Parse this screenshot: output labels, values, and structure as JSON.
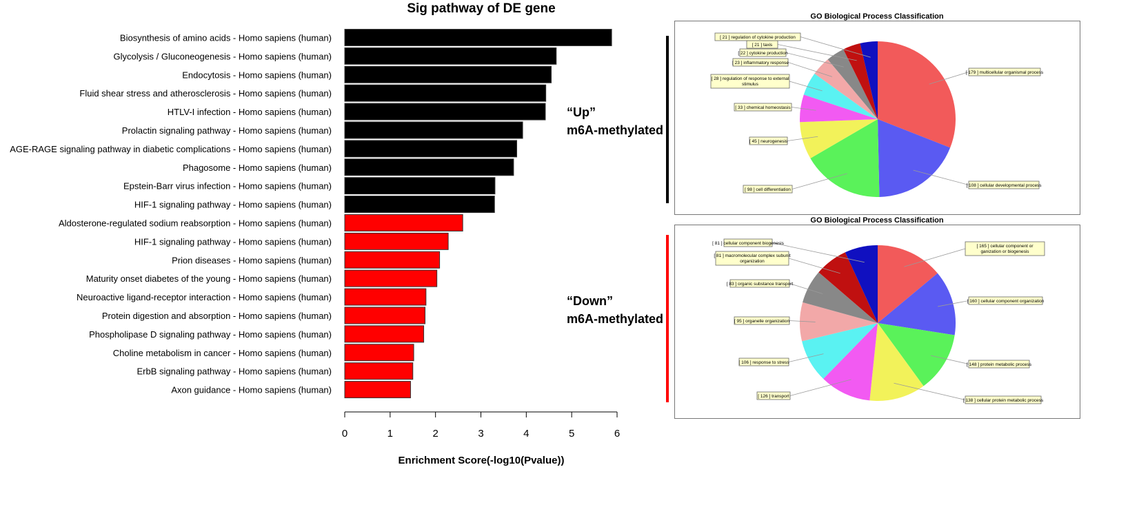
{
  "chart_data": [
    {
      "type": "bar",
      "orientation": "horizontal",
      "title": "Sig pathway of DE gene",
      "xlabel": "Enrichment Score(-log10(Pvalue))",
      "xlim": [
        0,
        6
      ],
      "xticks": [
        "0",
        "1",
        "2",
        "3",
        "4",
        "5",
        "6"
      ],
      "categories": [
        "Biosynthesis of amino acids - Homo sapiens (human)",
        "Glycolysis / Gluconeogenesis - Homo sapiens (human)",
        "Endocytosis - Homo sapiens (human)",
        "Fluid shear stress and atherosclerosis - Homo sapiens (human)",
        "HTLV-I infection - Homo sapiens (human)",
        "Prolactin signaling pathway - Homo sapiens (human)",
        "AGE-RAGE signaling pathway in diabetic complications - Homo sapiens (human)",
        "Phagosome - Homo sapiens (human)",
        "Epstein-Barr virus infection - Homo sapiens (human)",
        "HIF-1 signaling pathway - Homo sapiens (human)",
        "Aldosterone-regulated sodium reabsorption - Homo sapiens (human)",
        "HIF-1 signaling pathway - Homo sapiens (human)",
        "Prion diseases - Homo sapiens (human)",
        "Maturity onset diabetes of the young - Homo sapiens (human)",
        "Neuroactive ligand-receptor interaction - Homo sapiens (human)",
        "Protein digestion and absorption - Homo sapiens (human)",
        "Phospholipase D signaling pathway - Homo sapiens (human)",
        "Choline metabolism in cancer - Homo sapiens (human)",
        "ErbB signaling pathway - Homo sapiens (human)",
        "Axon guidance - Homo sapiens (human)"
      ],
      "values": [
        5.88,
        4.66,
        4.55,
        4.43,
        4.42,
        3.92,
        3.79,
        3.72,
        3.31,
        3.3,
        2.6,
        2.28,
        2.09,
        2.03,
        1.79,
        1.77,
        1.74,
        1.52,
        1.5,
        1.45
      ],
      "colors": [
        "#000000",
        "#000000",
        "#000000",
        "#000000",
        "#000000",
        "#000000",
        "#000000",
        "#000000",
        "#000000",
        "#000000",
        "#ff0000",
        "#ff0000",
        "#ff0000",
        "#ff0000",
        "#ff0000",
        "#ff0000",
        "#ff0000",
        "#ff0000",
        "#ff0000",
        "#ff0000"
      ]
    },
    {
      "type": "pie",
      "title": "GO Biological Process Classification",
      "group": "Up",
      "slices": [
        {
          "label": "[ 179 ] multicellular organismal process",
          "value": 179,
          "color": "#f25a5a"
        },
        {
          "label": "[ 108 ] cellular developmental process",
          "value": 108,
          "color": "#5a5af2"
        },
        {
          "label": "[ 98 ] cell differentiation",
          "value": 98,
          "color": "#5af25a"
        },
        {
          "label": "[ 45 ] neurogenesis",
          "value": 45,
          "color": "#f2f25a"
        },
        {
          "label": "[ 33 ] chemical homeostasis",
          "value": 33,
          "color": "#f25af2"
        },
        {
          "label": "[ 28 ] regulation of response to external stimulus",
          "value": 28,
          "color": "#5af2f2"
        },
        {
          "label": "[ 23 ] inflammatory response",
          "value": 23,
          "color": "#f2a8a8"
        },
        {
          "label": "[ 22 ] cytokine production",
          "value": 22,
          "color": "#888888"
        },
        {
          "label": "[ 21 ] taxis",
          "value": 21,
          "color": "#c01010"
        },
        {
          "label": "[ 21 ] regulation of cytokine production",
          "value": 21,
          "color": "#1010c0"
        }
      ]
    },
    {
      "type": "pie",
      "title": "GO Biological Process Classification",
      "group": "Down",
      "slices": [
        {
          "label": "[ 165 ] cellular component organization or biogenesis",
          "value": 165,
          "color": "#f25a5a"
        },
        {
          "label": "[ 160 ] cellular component organization",
          "value": 160,
          "color": "#5a5af2"
        },
        {
          "label": "[ 148 ] protein metabolic process",
          "value": 148,
          "color": "#5af25a"
        },
        {
          "label": "[ 138 ] cellular protein metabolic process",
          "value": 138,
          "color": "#f2f25a"
        },
        {
          "label": "[ 126 ] transport",
          "value": 126,
          "color": "#f25af2"
        },
        {
          "label": "[ 106 ] response to stress",
          "value": 106,
          "color": "#5af2f2"
        },
        {
          "label": "[ 95 ] organelle organization",
          "value": 95,
          "color": "#f2a8a8"
        },
        {
          "label": "[ 83 ] organic substance transport",
          "value": 83,
          "color": "#888888"
        },
        {
          "label": "[ 81 ] macromolecular complex subunit organization",
          "value": 81,
          "color": "#c01010"
        },
        {
          "label": "[ 81 ] cellular component biogenesis",
          "value": 81,
          "color": "#1010c0"
        }
      ]
    }
  ],
  "annotations": {
    "up_quote": "“Up”",
    "up_sub": "m6A-methylated",
    "down_quote": "“Down”",
    "down_sub": "m6A-methylated",
    "up_color": "#000000",
    "down_color": "#ff0000"
  }
}
